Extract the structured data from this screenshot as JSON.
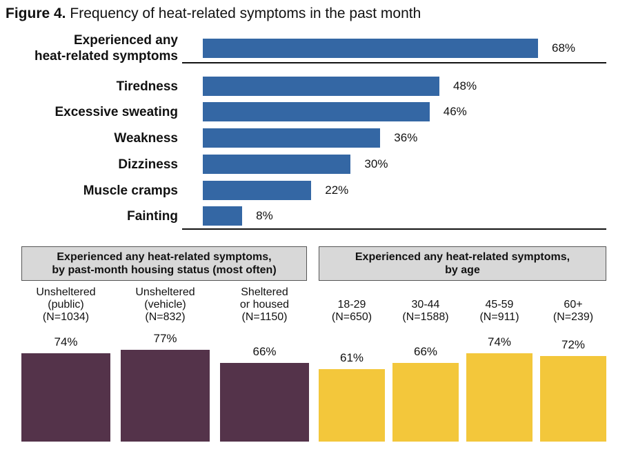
{
  "title": {
    "bold": "Figure 4.",
    "text": "Frequency of heat-related symptoms in the past month"
  },
  "colors": {
    "blue": "#3467a4",
    "purple": "#54334a",
    "yellow": "#f3c73b"
  },
  "chart_data": [
    {
      "type": "bar",
      "orientation": "horizontal",
      "title": "Frequency of heat-related symptoms in the past month",
      "categories": [
        [
          "Experienced any",
          "heat-related symptoms"
        ],
        [
          "Tiredness"
        ],
        [
          "Excessive sweating"
        ],
        [
          "Weakness"
        ],
        [
          "Dizziness"
        ],
        [
          "Muscle cramps"
        ],
        [
          "Fainting"
        ]
      ],
      "values": [
        68,
        48,
        46,
        36,
        30,
        22,
        8
      ],
      "labels": [
        "68%",
        "48%",
        "46%",
        "36%",
        "30%",
        "22%",
        "8%"
      ],
      "xlim": [
        0,
        100
      ]
    },
    {
      "type": "bar",
      "orientation": "vertical",
      "title": [
        "Experienced any heat-related symptoms,",
        "by past-month housing status (most often)"
      ],
      "categories": [
        [
          "Unsheltered",
          "(public)",
          "(N=1034)"
        ],
        [
          "Unsheltered",
          "(vehicle)",
          "(N=832)"
        ],
        [
          "Sheltered",
          "or housed",
          "(N=1150)"
        ]
      ],
      "values": [
        74,
        77,
        66
      ],
      "labels": [
        "74%",
        "77%",
        "66%"
      ],
      "ylim": [
        0,
        100
      ]
    },
    {
      "type": "bar",
      "orientation": "vertical",
      "title": [
        "Experienced any heat-related symptoms,",
        "by age"
      ],
      "categories": [
        [
          "18-29",
          "(N=650)"
        ],
        [
          "30-44",
          "(N=1588)"
        ],
        [
          "45-59",
          "(N=911)"
        ],
        [
          "60+",
          "(N=239)"
        ]
      ],
      "values": [
        61,
        66,
        74,
        72
      ],
      "labels": [
        "61%",
        "66%",
        "74%",
        "72%"
      ],
      "ylim": [
        0,
        100
      ]
    }
  ]
}
